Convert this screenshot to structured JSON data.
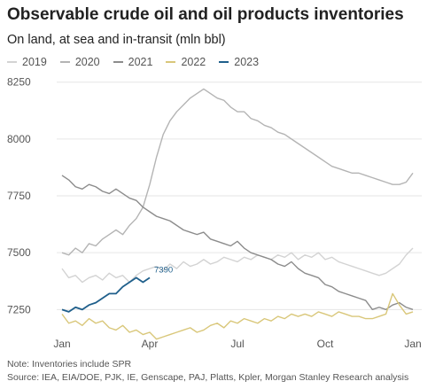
{
  "chart_data": {
    "type": "line",
    "title": "Observable crude oil and oil products inventories",
    "subtitle": "On land, at sea and in-transit (mln bbl)",
    "xlabel": "",
    "ylabel": "",
    "x_ticks": [
      "Jan",
      "Apr",
      "Jul",
      "Oct",
      "Jan"
    ],
    "x_tick_weeks": [
      0,
      13,
      26,
      39,
      52
    ],
    "y_ticks": [
      7250,
      7500,
      7750,
      8000,
      8250
    ],
    "ylim": [
      7150,
      8280
    ],
    "grid": "horizontal",
    "legend_placement": "top-left",
    "series": [
      {
        "name": "2019",
        "color": "#d3d3d3",
        "values": [
          7430,
          7390,
          7400,
          7370,
          7390,
          7400,
          7380,
          7410,
          7390,
          7400,
          7370,
          7400,
          7420,
          7430,
          7440,
          7420,
          7450,
          7430,
          7460,
          7440,
          7450,
          7470,
          7450,
          7460,
          7480,
          7470,
          7460,
          7480,
          7470,
          7490,
          7480,
          7470,
          7490,
          7480,
          7500,
          7470,
          7490,
          7480,
          7500,
          7470,
          7480,
          7460,
          7450,
          7440,
          7430,
          7420,
          7410,
          7400,
          7410,
          7430,
          7450,
          7490,
          7520
        ]
      },
      {
        "name": "2020",
        "color": "#b4b4b4",
        "values": [
          7500,
          7490,
          7520,
          7500,
          7540,
          7530,
          7560,
          7580,
          7600,
          7580,
          7620,
          7650,
          7700,
          7800,
          7920,
          8020,
          8080,
          8120,
          8150,
          8180,
          8200,
          8220,
          8200,
          8180,
          8170,
          8140,
          8120,
          8120,
          8090,
          8080,
          8060,
          8050,
          8030,
          8020,
          8000,
          7980,
          7960,
          7940,
          7920,
          7900,
          7880,
          7870,
          7860,
          7850,
          7850,
          7840,
          7830,
          7820,
          7810,
          7800,
          7800,
          7810,
          7850
        ]
      },
      {
        "name": "2021",
        "color": "#8c8c8c",
        "values": [
          7840,
          7820,
          7790,
          7780,
          7800,
          7790,
          7770,
          7760,
          7780,
          7760,
          7740,
          7730,
          7700,
          7680,
          7660,
          7650,
          7640,
          7620,
          7600,
          7590,
          7580,
          7590,
          7560,
          7550,
          7540,
          7530,
          7550,
          7520,
          7500,
          7490,
          7480,
          7470,
          7450,
          7440,
          7460,
          7430,
          7410,
          7400,
          7390,
          7360,
          7350,
          7330,
          7320,
          7310,
          7300,
          7290,
          7250,
          7260,
          7250,
          7270,
          7280,
          7260,
          7250
        ]
      },
      {
        "name": "2022",
        "color": "#d9c77a",
        "values": [
          7230,
          7190,
          7200,
          7180,
          7210,
          7190,
          7200,
          7170,
          7160,
          7180,
          7150,
          7160,
          7140,
          7150,
          7120,
          7130,
          7140,
          7150,
          7160,
          7170,
          7150,
          7160,
          7180,
          7190,
          7170,
          7200,
          7190,
          7210,
          7200,
          7190,
          7210,
          7200,
          7220,
          7210,
          7230,
          7220,
          7230,
          7220,
          7240,
          7230,
          7220,
          7240,
          7230,
          7220,
          7220,
          7210,
          7210,
          7220,
          7230,
          7320,
          7270,
          7230,
          7240
        ]
      },
      {
        "name": "2023",
        "color": "#1f5f8b",
        "values": [
          7250,
          7240,
          7260,
          7250,
          7270,
          7280,
          7300,
          7320,
          7320,
          7350,
          7370,
          7390,
          7370,
          7390
        ]
      }
    ],
    "annotations": [
      {
        "series": "2023",
        "label": "7390"
      }
    ]
  },
  "footer": {
    "note": "Note: Inventories include SPR",
    "source": "Source: IEA, EIA/DOE, PJK, IE, Genscape, PAJ, Platts, Kpler, Morgan Stanley Research analysis"
  }
}
